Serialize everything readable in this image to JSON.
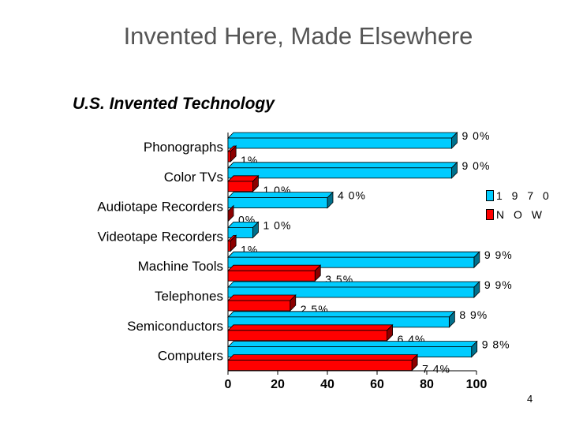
{
  "slide": {
    "title": "Invented Here, Made Elsewhere",
    "subtitle": "U.S. Invented Technology",
    "page_number": "4"
  },
  "chart_data": {
    "type": "bar",
    "orientation": "horizontal",
    "categories": [
      "Phonographs",
      "Color TVs",
      "Audiotape Recorders",
      "Videotape Recorders",
      "Machine Tools",
      "Telephones",
      "Semiconductors",
      "Computers"
    ],
    "series": [
      {
        "name": "1970",
        "color": "#00CCFF",
        "values": [
          90,
          90,
          40,
          10,
          99,
          99,
          89,
          98
        ],
        "labels": [
          "9 0%",
          "9 0%",
          "4 0%",
          "1 0%",
          "9 9%",
          "9 9%",
          "8 9%",
          "9 8%"
        ]
      },
      {
        "name": "NOW",
        "color": "#FF0000",
        "values": [
          1,
          10,
          0,
          1,
          35,
          25,
          64,
          74
        ],
        "labels": [
          "1%",
          "1 0%",
          "0%",
          "1%",
          "3 5%",
          "2 5%",
          "6 4%",
          "7 4%"
        ]
      }
    ],
    "legend_labels": [
      "1 9 7 0",
      "N O W"
    ],
    "xlim": [
      0,
      100
    ],
    "xticks": [
      "0",
      "20",
      "40",
      "60",
      "80",
      "100"
    ],
    "legend_position": "right",
    "style": "3d"
  }
}
